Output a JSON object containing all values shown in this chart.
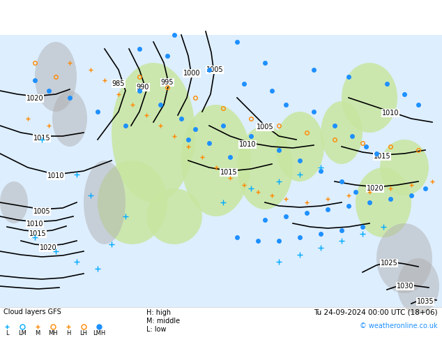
{
  "title": "Cloud layer GFS  Út 24.09.2024 00 UTC",
  "bg_color": "#ffffff",
  "map_bg": "#e8f4f8",
  "legend_left_title": "Cloud layers GFS",
  "legend_symbols": [
    {
      "label": "L",
      "marker": "+",
      "color": "#00aaff"
    },
    {
      "label": "LM",
      "marker": "o",
      "color": "#00aaff"
    },
    {
      "label": "M",
      "marker": "+",
      "color": "#ff8800"
    },
    {
      "label": "MH",
      "marker": "o",
      "color": "#ff8800"
    },
    {
      "label": "H",
      "marker": "+",
      "color": "#ff8800"
    },
    {
      "label": "LH",
      "marker": "o",
      "color": "#ff8800"
    },
    {
      "label": "LMH",
      "marker": "o",
      "color": "#0055ff"
    }
  ],
  "legend_right": [
    "H: high",
    "M: middle",
    "L: low"
  ],
  "datetime_str": "Tu 24-09-2024 00:00 UTC (18+06)",
  "copyright_str": "© weatheronline.co.uk",
  "green_fill": "#c8e6a0",
  "gray_fill": "#b0b0b0",
  "contour_color": "#000000",
  "label_color": "#000000",
  "blue_dot_color": "#1e90ff",
  "plus_color_blue": "#00aaff",
  "plus_color_orange": "#ff8800"
}
